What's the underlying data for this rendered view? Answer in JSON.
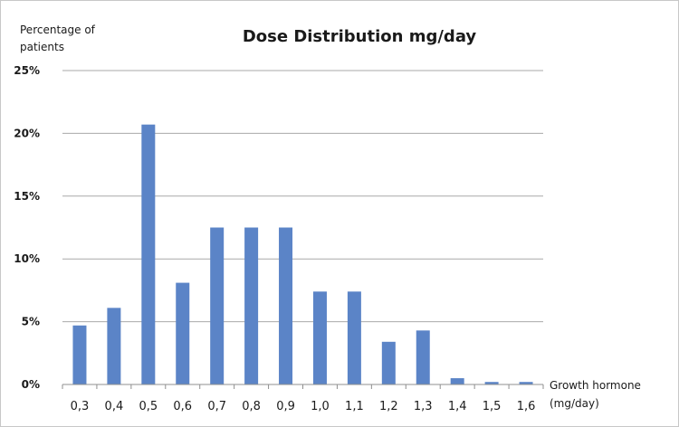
{
  "chart_data": {
    "type": "bar",
    "title": "Dose Distribution mg/day",
    "ylabel_lines": [
      "Percentage of",
      "patients"
    ],
    "xlabel_lines": [
      "Growth hormone",
      "(mg/day)"
    ],
    "categories": [
      "0,3",
      "0,4",
      "0,5",
      "0,6",
      "0,7",
      "0,8",
      "0,9",
      "1,0",
      "1,1",
      "1,2",
      "1,3",
      "1,4",
      "1,5",
      "1,6"
    ],
    "values": [
      4.7,
      6.1,
      20.7,
      8.1,
      12.5,
      12.5,
      12.5,
      7.4,
      7.4,
      3.4,
      4.3,
      0.5,
      0.2,
      0.2
    ],
    "ylim": [
      0,
      25
    ],
    "yticks": [
      0,
      5,
      10,
      15,
      20,
      25
    ],
    "ytick_labels": [
      "0%",
      "5%",
      "10%",
      "15%",
      "20%",
      "25%"
    ],
    "grid": true,
    "bar_color": "#5b84c7"
  }
}
